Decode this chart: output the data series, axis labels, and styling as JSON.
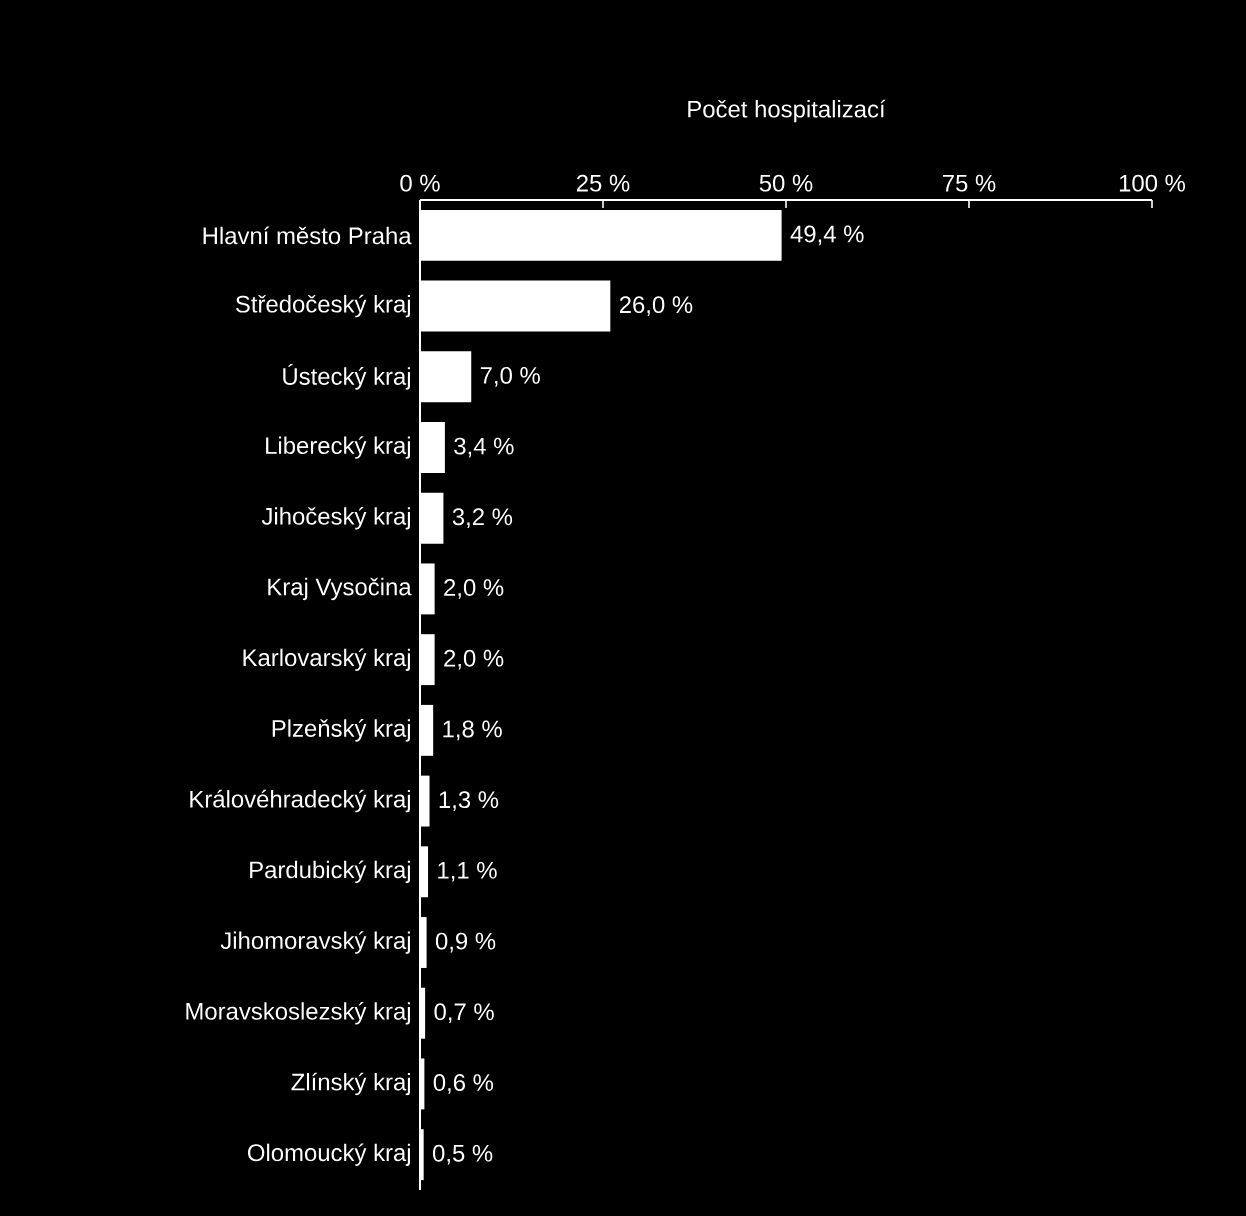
{
  "chart_data": {
    "type": "bar",
    "orientation": "horizontal",
    "xlabel": "Počet hospitalizací",
    "categories": [
      "Hlavní město Praha",
      "Středočeský kraj",
      "Ústecký kraj",
      "Liberecký kraj",
      "Jihočeský kraj",
      "Kraj Vysočina",
      "Karlovarský kraj",
      "Plzeňský kraj",
      "Královéhradecký kraj",
      "Pardubický kraj",
      "Jihomoravský kraj",
      "Moravskoslezský kraj",
      "Zlínský kraj",
      "Olomoucký kraj"
    ],
    "values": [
      49.4,
      26.0,
      7.0,
      3.4,
      3.2,
      2.0,
      2.0,
      1.8,
      1.3,
      1.1,
      0.9,
      0.7,
      0.6,
      0.5
    ],
    "value_labels": [
      "49,4 %",
      "26,0 %",
      "7,0 %",
      "3,4 %",
      "3,2 %",
      "2,0 %",
      "2,0 %",
      "1,8 %",
      "1,3 %",
      "1,1 %",
      "0,9 %",
      "0,7 %",
      "0,6 %",
      "0,5 %"
    ],
    "color": "#ffffff",
    "xlim": [
      0,
      100
    ],
    "xticks": [
      {
        "value": 0,
        "label": "0 %"
      },
      {
        "value": 25,
        "label": "25 %"
      },
      {
        "value": 50,
        "label": "50 %"
      },
      {
        "value": 75,
        "label": "75 %"
      },
      {
        "value": 100,
        "label": "100 %"
      }
    ]
  }
}
